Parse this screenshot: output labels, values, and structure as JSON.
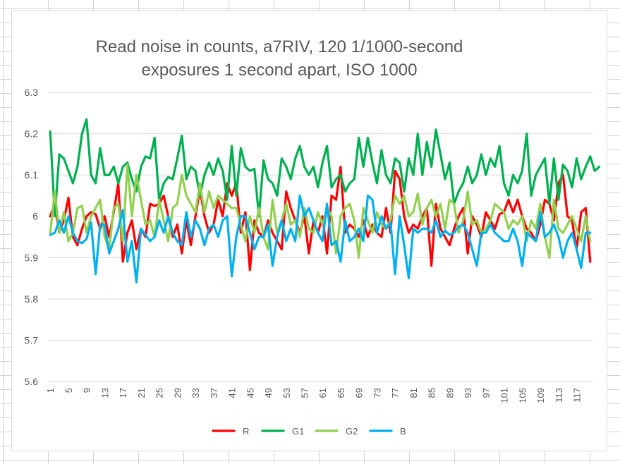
{
  "chart_data": {
    "type": "line",
    "title_lines": [
      "Read noise in counts, a7RIV, 120 1/1000-second",
      "exposures 1 second apart, ISO 1000"
    ],
    "xlabel": "",
    "ylabel": "",
    "ylim": [
      5.6,
      6.3
    ],
    "yticks": [
      "5.6",
      "5.7",
      "5.8",
      "5.9",
      "6",
      "6.1",
      "6.2",
      "6.3"
    ],
    "x_start": 1,
    "x_end": 120,
    "x_tick_labels": [
      "1",
      "5",
      "9",
      "13",
      "17",
      "21",
      "25",
      "29",
      "33",
      "37",
      "41",
      "45",
      "49",
      "53",
      "57",
      "61",
      "65",
      "69",
      "73",
      "77",
      "81",
      "85",
      "89",
      "93",
      "97",
      "101",
      "105",
      "109",
      "113",
      "117"
    ],
    "grid": "horizontal",
    "legend_position": "bottom",
    "series": [
      {
        "name": "R",
        "color": "#ff0000",
        "values": [
          6.0,
          6.03,
          5.96,
          5.99,
          6.045,
          5.95,
          5.93,
          5.97,
          6.0,
          6.01,
          6.005,
          5.97,
          6.0,
          5.95,
          6.01,
          6.08,
          5.89,
          5.96,
          5.99,
          5.92,
          5.97,
          5.95,
          6.03,
          6.025,
          6.03,
          6.05,
          6.0,
          5.95,
          5.98,
          5.91,
          5.99,
          5.93,
          6.0,
          6.065,
          6.0,
          5.96,
          5.98,
          6.04,
          6.0,
          6.08,
          6.05,
          6.08,
          5.96,
          6.01,
          5.87,
          5.99,
          5.96,
          5.95,
          5.99,
          5.96,
          5.94,
          5.92,
          6.06,
          6.02,
          5.99,
          5.96,
          6.0,
          5.91,
          5.99,
          5.96,
          6.0,
          5.91,
          6.05,
          6.04,
          6.12,
          5.96,
          5.98,
          5.97,
          5.95,
          5.99,
          5.95,
          5.98,
          5.96,
          5.95,
          6.02,
          5.96,
          6.11,
          6.09,
          6.0,
          5.96,
          5.98,
          5.97,
          6.0,
          6.02,
          5.88,
          6.03,
          5.97,
          5.95,
          5.93,
          5.97,
          6.0,
          6.02,
          5.91,
          6.0,
          5.98,
          5.95,
          6.01,
          5.99,
          5.97,
          6.005,
          6.01,
          6.04,
          6.01,
          6.04,
          6.0,
          5.97,
          5.96,
          5.94,
          5.98,
          6.04,
          6.03,
          5.99,
          6.08,
          6.1,
          6.0,
          5.99,
          5.92,
          6.01,
          6.02,
          5.89
        ]
      },
      {
        "name": "G1",
        "color": "#00b050",
        "values": [
          6.205,
          6.0,
          6.15,
          6.14,
          6.11,
          6.08,
          6.12,
          6.2,
          6.235,
          6.1,
          6.08,
          6.165,
          6.1,
          6.1,
          6.12,
          6.08,
          6.12,
          6.13,
          6.09,
          6.06,
          6.12,
          6.145,
          6.14,
          6.19,
          6.04,
          6.08,
          6.095,
          6.09,
          6.14,
          6.195,
          6.09,
          6.12,
          6.11,
          6.05,
          6.1,
          6.13,
          6.1,
          6.14,
          6.11,
          6.04,
          6.17,
          6.05,
          6.165,
          6.12,
          6.11,
          6.115,
          6.0,
          6.135,
          6.09,
          6.08,
          6.05,
          6.14,
          6.12,
          6.09,
          6.14,
          6.17,
          6.12,
          6.1,
          6.12,
          6.07,
          6.13,
          6.17,
          6.07,
          6.09,
          6.1,
          6.06,
          6.08,
          6.09,
          6.19,
          6.12,
          6.19,
          6.13,
          6.08,
          6.16,
          6.1,
          6.08,
          6.14,
          6.13,
          6.06,
          6.14,
          6.1,
          6.2,
          6.1,
          6.18,
          6.12,
          6.21,
          6.15,
          6.09,
          6.13,
          6.03,
          6.06,
          6.08,
          6.12,
          6.08,
          6.1,
          6.15,
          6.1,
          6.14,
          6.12,
          6.17,
          6.08,
          6.05,
          6.1,
          6.08,
          6.11,
          6.2,
          6.05,
          6.1,
          6.12,
          6.14,
          6.03,
          6.14,
          6.04,
          6.125,
          6.11,
          6.07,
          6.14,
          6.09,
          6.12,
          6.145,
          6.11,
          6.12
        ]
      },
      {
        "name": "G2",
        "color": "#92d050",
        "values": [
          5.96,
          6.06,
          5.96,
          6.01,
          5.94,
          5.96,
          6.02,
          6.025,
          5.96,
          6.0,
          6.02,
          6.04,
          5.95,
          5.92,
          6.02,
          6.03,
          5.94,
          6.125,
          6.0,
          6.1,
          6.04,
          5.98,
          5.99,
          5.95,
          6.04,
          5.99,
          5.94,
          6.02,
          6.03,
          6.1,
          6.05,
          6.03,
          6.01,
          6.08,
          6.01,
          6.06,
          6.02,
          6.05,
          6.04,
          6.03,
          6.02,
          6.02,
          5.98,
          5.94,
          6.0,
          5.96,
          6.02,
          5.95,
          5.92,
          6.04,
          5.96,
          5.99,
          6.03,
          5.98,
          5.99,
          5.95,
          6.02,
          5.97,
          5.96,
          6.01,
          5.98,
          6.02,
          6.0,
          5.91,
          6.0,
          6.02,
          6.03,
          5.99,
          5.9,
          6.02,
          5.99,
          5.96,
          6.01,
          5.98,
          5.97,
          5.99,
          6.05,
          6.03,
          6.05,
          6.0,
          6.01,
          6.055,
          5.98,
          6.02,
          6.04,
          6.0,
          6.03,
          5.97,
          6.04,
          6.03,
          5.96,
          5.99,
          6.06,
          5.98,
          5.99,
          5.96,
          5.97,
          5.99,
          6.03,
          6.02,
          6.01,
          5.97,
          5.99,
          5.98,
          6.0,
          5.94,
          5.99,
          5.97,
          6.03,
          5.95,
          5.9,
          6.04,
          5.97,
          5.96,
          5.98,
          6.0,
          5.97,
          5.94,
          6.0,
          5.94
        ]
      },
      {
        "name": "B",
        "color": "#00b0f0",
        "values": [
          5.955,
          5.96,
          5.99,
          5.96,
          6.0,
          5.96,
          5.94,
          5.935,
          5.945,
          5.985,
          5.86,
          5.98,
          5.98,
          5.91,
          5.94,
          5.97,
          6.015,
          5.89,
          5.94,
          5.84,
          5.97,
          5.955,
          5.94,
          5.95,
          5.99,
          5.96,
          6.0,
          5.96,
          5.94,
          5.93,
          6.01,
          5.95,
          5.99,
          5.97,
          5.93,
          5.97,
          5.98,
          5.95,
          5.99,
          6.0,
          5.855,
          5.95,
          6.0,
          6.0,
          5.96,
          5.92,
          5.95,
          5.95,
          5.98,
          5.88,
          5.95,
          5.99,
          5.94,
          5.97,
          5.94,
          6.05,
          6.0,
          6.02,
          5.99,
          5.96,
          5.94,
          6.03,
          5.93,
          5.94,
          5.89,
          5.99,
          5.94,
          5.95,
          5.97,
          5.94,
          6.05,
          6.04,
          5.96,
          6.0,
          5.97,
          5.985,
          5.86,
          6.0,
          5.93,
          5.85,
          5.97,
          5.96,
          5.97,
          5.97,
          5.96,
          5.99,
          5.95,
          5.965,
          5.955,
          5.96,
          5.975,
          5.98,
          5.96,
          5.92,
          5.88,
          5.96,
          5.96,
          5.98,
          5.96,
          5.95,
          5.94,
          5.94,
          5.97,
          5.94,
          5.88,
          5.96,
          5.95,
          5.94,
          6.01,
          5.95,
          5.96,
          5.98,
          5.95,
          5.9,
          5.94,
          5.96,
          5.92,
          5.875,
          5.96,
          5.96
        ]
      }
    ]
  }
}
